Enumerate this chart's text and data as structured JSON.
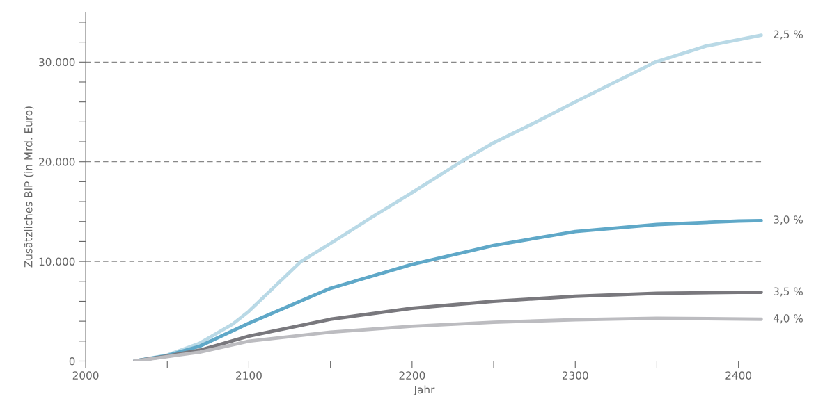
{
  "chart_data": {
    "type": "line",
    "xlabel": "Jahr",
    "ylabel": "Zusätzliches BIP (in Mrd. Euro)",
    "xlim": [
      2000,
      2415
    ],
    "ylim": [
      0,
      35000
    ],
    "xticks": [
      2000,
      {
        "value": 2050,
        "label": null
      },
      2100,
      {
        "value": 2150,
        "label": null
      },
      2200,
      {
        "value": 2250,
        "label": null
      },
      2300,
      {
        "value": 2350,
        "label": null
      },
      2400
    ],
    "yticks": [
      {
        "value": 0,
        "label": "0"
      },
      {
        "value": 2000,
        "label": null
      },
      {
        "value": 4000,
        "label": null
      },
      {
        "value": 6000,
        "label": null
      },
      {
        "value": 8000,
        "label": null
      },
      {
        "value": 10000,
        "label": "10.000"
      },
      {
        "value": 12000,
        "label": null
      },
      {
        "value": 14000,
        "label": null
      },
      {
        "value": 16000,
        "label": null
      },
      {
        "value": 18000,
        "label": null
      },
      {
        "value": 20000,
        "label": "20.000"
      },
      {
        "value": 22000,
        "label": null
      },
      {
        "value": 24000,
        "label": null
      },
      {
        "value": 26000,
        "label": null
      },
      {
        "value": 28000,
        "label": null
      },
      {
        "value": 30000,
        "label": "30.000"
      },
      {
        "value": 32000,
        "label": null
      },
      {
        "value": 34000,
        "label": null
      }
    ],
    "grid": "y",
    "marker": "none",
    "line_style": "solid",
    "legend": false,
    "series": [
      {
        "name": "2,5 %",
        "color": "#b9d9e6",
        "x": [
          2030,
          2050,
          2070,
          2090,
          2100,
          2132,
          2150,
          2175,
          2200,
          2230,
          2250,
          2275,
          2300,
          2349,
          2380,
          2414
        ],
        "values": [
          0,
          600,
          1800,
          3700,
          5000,
          10000,
          11800,
          14400,
          16900,
          20000,
          21900,
          23900,
          26000,
          30000,
          31600,
          32700
        ]
      },
      {
        "name": "3,0 %",
        "color": "#5fa8c8",
        "x": [
          2030,
          2050,
          2070,
          2100,
          2150,
          2200,
          2250,
          2300,
          2350,
          2400,
          2414
        ],
        "values": [
          0,
          550,
          1500,
          3800,
          7300,
          9700,
          11600,
          13000,
          13700,
          14050,
          14100
        ]
      },
      {
        "name": "3,5 %",
        "color": "#79787d",
        "x": [
          2030,
          2050,
          2070,
          2100,
          2150,
          2200,
          2250,
          2300,
          2350,
          2400,
          2414
        ],
        "values": [
          0,
          500,
          1100,
          2500,
          4200,
          5300,
          6000,
          6500,
          6800,
          6900,
          6900
        ]
      },
      {
        "name": "4,0 %",
        "color": "#bcbcc0",
        "x": [
          2030,
          2050,
          2070,
          2100,
          2150,
          2200,
          2250,
          2300,
          2350,
          2414
        ],
        "values": [
          0,
          450,
          900,
          2000,
          2900,
          3500,
          3900,
          4150,
          4300,
          4200
        ]
      }
    ]
  }
}
